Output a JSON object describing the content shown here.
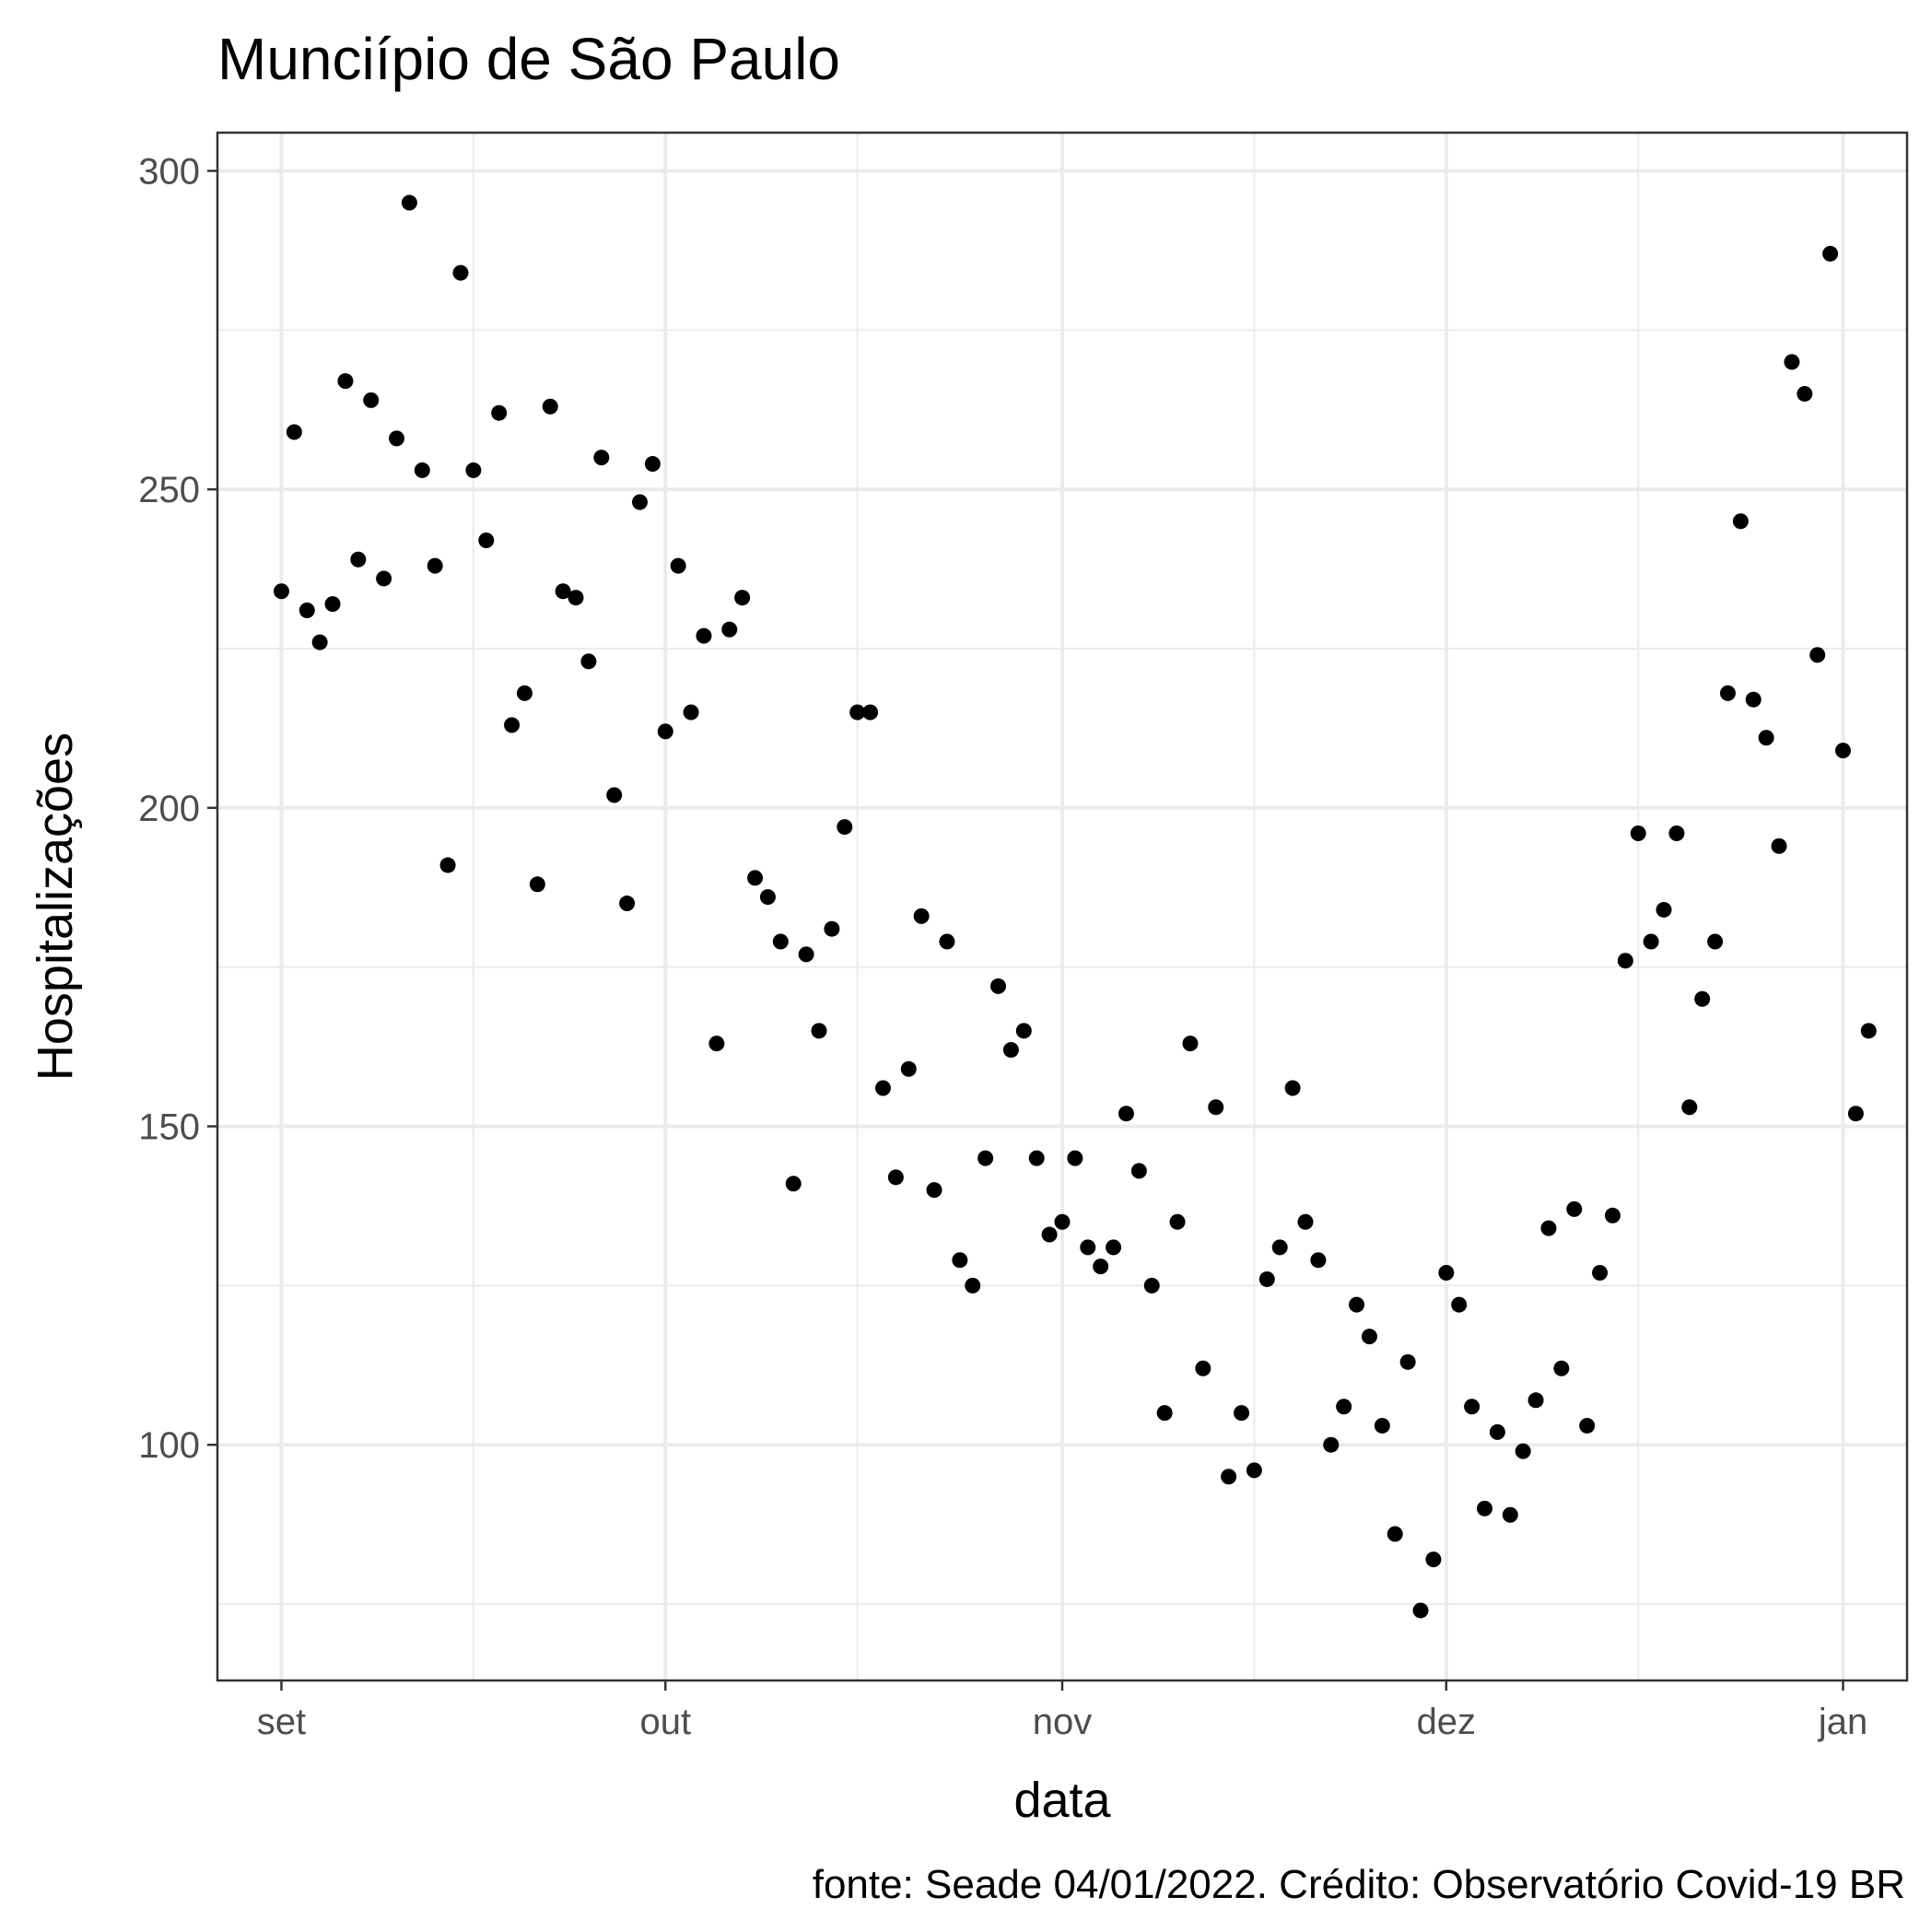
{
  "chart_data": {
    "type": "scatter",
    "title": "Munciípio de São Paulo",
    "xlabel": "data",
    "ylabel": "Hospitalizações",
    "caption": "fonte: Seade 04/01/2022. Crédito: Observatório Covid-19 BR",
    "x_start": "2021-09-01",
    "xlim": [
      "2021-08-27",
      "2022-01-06"
    ],
    "ylim": [
      63,
      306
    ],
    "x_ticks": [
      {
        "label": "set",
        "date": "2021-09-01"
      },
      {
        "label": "out",
        "date": "2021-10-01"
      },
      {
        "label": "nov",
        "date": "2021-11-01"
      },
      {
        "label": "dez",
        "date": "2021-12-01"
      },
      {
        "label": "jan",
        "date": "2022-01-01"
      }
    ],
    "y_ticks": [
      100,
      150,
      200,
      250,
      300
    ],
    "grid": true,
    "legend": "none",
    "series": [
      {
        "x": [
          "2021-09-01",
          "2021-09-02",
          "2021-09-03",
          "2021-09-04",
          "2021-09-05",
          "2021-09-06",
          "2021-09-07",
          "2021-09-08",
          "2021-09-09",
          "2021-09-10",
          "2021-09-11",
          "2021-09-12",
          "2021-09-13",
          "2021-09-14",
          "2021-09-15",
          "2021-09-16",
          "2021-09-17",
          "2021-09-18",
          "2021-09-19",
          "2021-09-20",
          "2021-09-21",
          "2021-09-22",
          "2021-09-23",
          "2021-09-24",
          "2021-09-25",
          "2021-09-26",
          "2021-09-27",
          "2021-09-28",
          "2021-09-29",
          "2021-09-30",
          "2021-10-01",
          "2021-10-02",
          "2021-10-03",
          "2021-10-04",
          "2021-10-05",
          "2021-10-06",
          "2021-10-07",
          "2021-10-08",
          "2021-10-09",
          "2021-10-10",
          "2021-10-11",
          "2021-10-12",
          "2021-10-13",
          "2021-10-14",
          "2021-10-15",
          "2021-10-16",
          "2021-10-17",
          "2021-10-18",
          "2021-10-19",
          "2021-10-20",
          "2021-10-21",
          "2021-10-22",
          "2021-10-23",
          "2021-10-24",
          "2021-10-25",
          "2021-10-26",
          "2021-10-27",
          "2021-10-28",
          "2021-10-29",
          "2021-10-30",
          "2021-10-31",
          "2021-11-01",
          "2021-11-02",
          "2021-11-03",
          "2021-11-04",
          "2021-11-05",
          "2021-11-06",
          "2021-11-07",
          "2021-11-08",
          "2021-11-09",
          "2021-11-10",
          "2021-11-11",
          "2021-11-12",
          "2021-11-13",
          "2021-11-14",
          "2021-11-15",
          "2021-11-16",
          "2021-11-17",
          "2021-11-18",
          "2021-11-19",
          "2021-11-20",
          "2021-11-21",
          "2021-11-22",
          "2021-11-23",
          "2021-11-24",
          "2021-11-25",
          "2021-11-26",
          "2021-11-27",
          "2021-11-28",
          "2021-11-29",
          "2021-11-30",
          "2021-12-01",
          "2021-12-02",
          "2021-12-03",
          "2021-12-04",
          "2021-12-05",
          "2021-12-06",
          "2021-12-07",
          "2021-12-08",
          "2021-12-09",
          "2021-12-10",
          "2021-12-11",
          "2021-12-12",
          "2021-12-13",
          "2021-12-14",
          "2021-12-15",
          "2021-12-16",
          "2021-12-17",
          "2021-12-18",
          "2021-12-19",
          "2021-12-20",
          "2021-12-21",
          "2021-12-22",
          "2021-12-23",
          "2021-12-24",
          "2021-12-25",
          "2021-12-26",
          "2021-12-27",
          "2021-12-28",
          "2021-12-29",
          "2021-12-30",
          "2021-12-31",
          "2022-01-01",
          "2022-01-02",
          "2022-01-03"
        ],
        "y": [
          234,
          259,
          231,
          226,
          232,
          267,
          239,
          264,
          236,
          258,
          295,
          253,
          238,
          191,
          284,
          253,
          242,
          262,
          213,
          218,
          188,
          263,
          234,
          233,
          223,
          255,
          202,
          185,
          248,
          254,
          212,
          238,
          215,
          227,
          163,
          228,
          233,
          189,
          186,
          179,
          141,
          177,
          165,
          181,
          197,
          215,
          215,
          156,
          142,
          159,
          183,
          140,
          179,
          129,
          125,
          145,
          172,
          162,
          165,
          145,
          133,
          135,
          145,
          131,
          128,
          131,
          152,
          143,
          125,
          105,
          135,
          163,
          112,
          153,
          95,
          105,
          96,
          126,
          131,
          156,
          135,
          129,
          100,
          106,
          122,
          117,
          103,
          86,
          113,
          74,
          82,
          127,
          122,
          106,
          90,
          102,
          89,
          99,
          107,
          134,
          112,
          137,
          103,
          127,
          136,
          176,
          196,
          179,
          184,
          196,
          153,
          170,
          179,
          218,
          245,
          217,
          211,
          194,
          270,
          265,
          224,
          287,
          209,
          152,
          165
        ]
      }
    ]
  }
}
